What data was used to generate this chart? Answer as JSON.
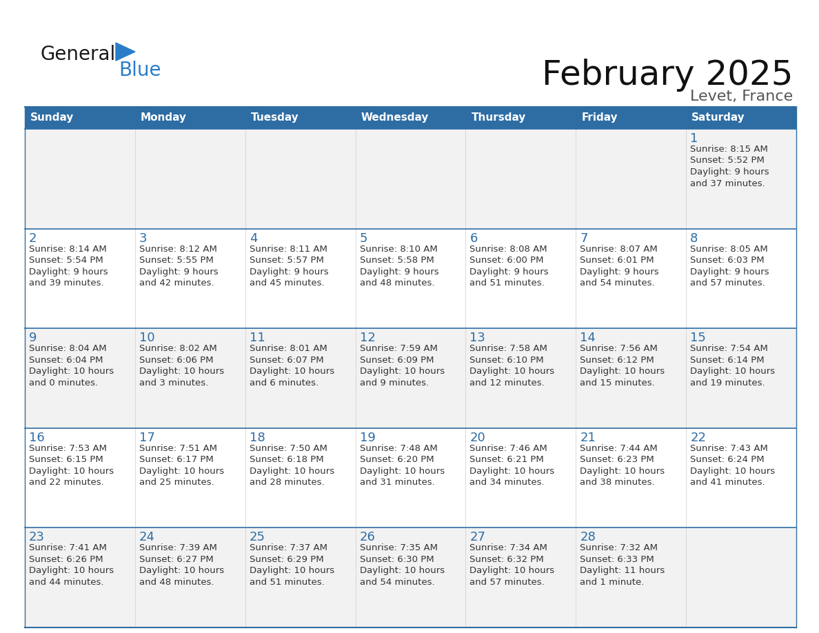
{
  "title": "February 2025",
  "subtitle": "Levet, France",
  "header_color": "#2e6da4",
  "header_text_color": "#ffffff",
  "border_color": "#2e6da4",
  "day_number_color": "#2e6da4",
  "text_color": "#333333",
  "row_bg_odd": "#f2f2f2",
  "row_bg_even": "#ffffff",
  "days_of_week": [
    "Sunday",
    "Monday",
    "Tuesday",
    "Wednesday",
    "Thursday",
    "Friday",
    "Saturday"
  ],
  "calendar_data": [
    [
      null,
      null,
      null,
      null,
      null,
      null,
      {
        "day": 1,
        "sunrise": "8:15 AM",
        "sunset": "5:52 PM",
        "daylight_line1": "9 hours",
        "daylight_line2": "and 37 minutes."
      }
    ],
    [
      {
        "day": 2,
        "sunrise": "8:14 AM",
        "sunset": "5:54 PM",
        "daylight_line1": "9 hours",
        "daylight_line2": "and 39 minutes."
      },
      {
        "day": 3,
        "sunrise": "8:12 AM",
        "sunset": "5:55 PM",
        "daylight_line1": "9 hours",
        "daylight_line2": "and 42 minutes."
      },
      {
        "day": 4,
        "sunrise": "8:11 AM",
        "sunset": "5:57 PM",
        "daylight_line1": "9 hours",
        "daylight_line2": "and 45 minutes."
      },
      {
        "day": 5,
        "sunrise": "8:10 AM",
        "sunset": "5:58 PM",
        "daylight_line1": "9 hours",
        "daylight_line2": "and 48 minutes."
      },
      {
        "day": 6,
        "sunrise": "8:08 AM",
        "sunset": "6:00 PM",
        "daylight_line1": "9 hours",
        "daylight_line2": "and 51 minutes."
      },
      {
        "day": 7,
        "sunrise": "8:07 AM",
        "sunset": "6:01 PM",
        "daylight_line1": "9 hours",
        "daylight_line2": "and 54 minutes."
      },
      {
        "day": 8,
        "sunrise": "8:05 AM",
        "sunset": "6:03 PM",
        "daylight_line1": "9 hours",
        "daylight_line2": "and 57 minutes."
      }
    ],
    [
      {
        "day": 9,
        "sunrise": "8:04 AM",
        "sunset": "6:04 PM",
        "daylight_line1": "10 hours",
        "daylight_line2": "and 0 minutes."
      },
      {
        "day": 10,
        "sunrise": "8:02 AM",
        "sunset": "6:06 PM",
        "daylight_line1": "10 hours",
        "daylight_line2": "and 3 minutes."
      },
      {
        "day": 11,
        "sunrise": "8:01 AM",
        "sunset": "6:07 PM",
        "daylight_line1": "10 hours",
        "daylight_line2": "and 6 minutes."
      },
      {
        "day": 12,
        "sunrise": "7:59 AM",
        "sunset": "6:09 PM",
        "daylight_line1": "10 hours",
        "daylight_line2": "and 9 minutes."
      },
      {
        "day": 13,
        "sunrise": "7:58 AM",
        "sunset": "6:10 PM",
        "daylight_line1": "10 hours",
        "daylight_line2": "and 12 minutes."
      },
      {
        "day": 14,
        "sunrise": "7:56 AM",
        "sunset": "6:12 PM",
        "daylight_line1": "10 hours",
        "daylight_line2": "and 15 minutes."
      },
      {
        "day": 15,
        "sunrise": "7:54 AM",
        "sunset": "6:14 PM",
        "daylight_line1": "10 hours",
        "daylight_line2": "and 19 minutes."
      }
    ],
    [
      {
        "day": 16,
        "sunrise": "7:53 AM",
        "sunset": "6:15 PM",
        "daylight_line1": "10 hours",
        "daylight_line2": "and 22 minutes."
      },
      {
        "day": 17,
        "sunrise": "7:51 AM",
        "sunset": "6:17 PM",
        "daylight_line1": "10 hours",
        "daylight_line2": "and 25 minutes."
      },
      {
        "day": 18,
        "sunrise": "7:50 AM",
        "sunset": "6:18 PM",
        "daylight_line1": "10 hours",
        "daylight_line2": "and 28 minutes."
      },
      {
        "day": 19,
        "sunrise": "7:48 AM",
        "sunset": "6:20 PM",
        "daylight_line1": "10 hours",
        "daylight_line2": "and 31 minutes."
      },
      {
        "day": 20,
        "sunrise": "7:46 AM",
        "sunset": "6:21 PM",
        "daylight_line1": "10 hours",
        "daylight_line2": "and 34 minutes."
      },
      {
        "day": 21,
        "sunrise": "7:44 AM",
        "sunset": "6:23 PM",
        "daylight_line1": "10 hours",
        "daylight_line2": "and 38 minutes."
      },
      {
        "day": 22,
        "sunrise": "7:43 AM",
        "sunset": "6:24 PM",
        "daylight_line1": "10 hours",
        "daylight_line2": "and 41 minutes."
      }
    ],
    [
      {
        "day": 23,
        "sunrise": "7:41 AM",
        "sunset": "6:26 PM",
        "daylight_line1": "10 hours",
        "daylight_line2": "and 44 minutes."
      },
      {
        "day": 24,
        "sunrise": "7:39 AM",
        "sunset": "6:27 PM",
        "daylight_line1": "10 hours",
        "daylight_line2": "and 48 minutes."
      },
      {
        "day": 25,
        "sunrise": "7:37 AM",
        "sunset": "6:29 PM",
        "daylight_line1": "10 hours",
        "daylight_line2": "and 51 minutes."
      },
      {
        "day": 26,
        "sunrise": "7:35 AM",
        "sunset": "6:30 PM",
        "daylight_line1": "10 hours",
        "daylight_line2": "and 54 minutes."
      },
      {
        "day": 27,
        "sunrise": "7:34 AM",
        "sunset": "6:32 PM",
        "daylight_line1": "10 hours",
        "daylight_line2": "and 57 minutes."
      },
      {
        "day": 28,
        "sunrise": "7:32 AM",
        "sunset": "6:33 PM",
        "daylight_line1": "11 hours",
        "daylight_line2": "and 1 minute."
      },
      null
    ]
  ],
  "logo_color_general": "#1a1a1a",
  "logo_color_blue": "#2a7dc9",
  "logo_color_triangle": "#2a7dc9"
}
